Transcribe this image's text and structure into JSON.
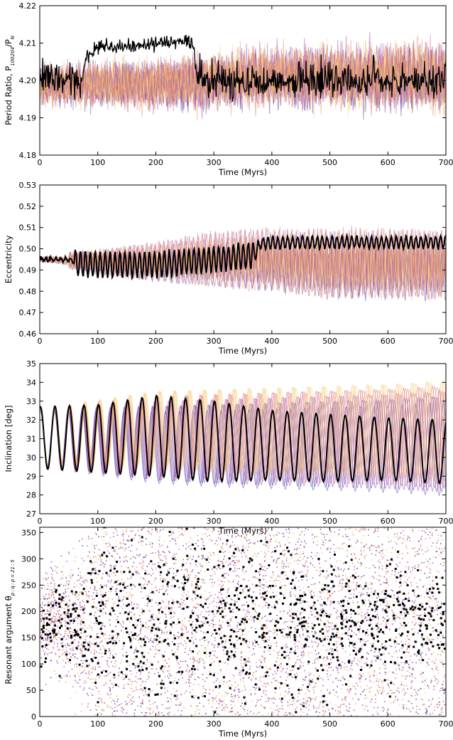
{
  "chart_data": [
    {
      "type": "line",
      "xlabel": "Time (Myrs)",
      "ylabel": "Period Ratio, P",
      "ylabel_sub": "100204",
      "ylabel_tail": "/P",
      "ylabel_sub2": "N",
      "xlim": [
        0,
        700
      ],
      "ylim": [
        4.18,
        4.22
      ],
      "xticks": [
        0,
        100,
        200,
        300,
        400,
        500,
        600,
        700
      ],
      "yticks": [
        "4.18",
        "4.19",
        "4.20",
        "4.21",
        "4.22"
      ],
      "ytick_values": [
        4.18,
        4.19,
        4.2,
        4.21,
        4.22
      ],
      "series": [
        {
          "role": "nominal",
          "color": "#000000",
          "x": [
            0,
            60,
            70,
            80,
            100,
            150,
            200,
            250,
            265,
            270,
            300,
            350,
            400,
            450,
            500,
            550,
            600,
            650,
            700
          ],
          "y": [
            4.2,
            4.2,
            4.199,
            4.206,
            4.209,
            4.209,
            4.21,
            4.211,
            4.21,
            4.2,
            4.2,
            4.2,
            4.2,
            4.2,
            4.2,
            4.2,
            4.2,
            4.2,
            4.2
          ]
        },
        {
          "role": "clones",
          "colormap": [
            "#3b2b9e",
            "#7b3fa8",
            "#b14d9a",
            "#d96b7c",
            "#f3a35b",
            "#fbd865"
          ],
          "x": [
            0,
            100,
            200,
            300,
            400,
            500,
            600,
            700
          ],
          "y": [
            4.199,
            4.199,
            4.199,
            4.2,
            4.201,
            4.201,
            4.201,
            4.201
          ]
        }
      ]
    },
    {
      "type": "line",
      "xlabel": "Time (Myrs)",
      "ylabel": "Eccentricity",
      "xlim": [
        0,
        700
      ],
      "ylim": [
        0.46,
        0.53
      ],
      "xticks": [
        0,
        100,
        200,
        300,
        400,
        500,
        600,
        700
      ],
      "yticks": [
        "0.46",
        "0.47",
        "0.48",
        "0.49",
        "0.50",
        "0.51",
        "0.52",
        "0.53"
      ],
      "ytick_values": [
        0.46,
        0.47,
        0.48,
        0.49,
        0.5,
        0.51,
        0.52,
        0.53
      ],
      "series": [
        {
          "role": "nominal",
          "color": "#000000",
          "x": [
            0,
            50,
            65,
            100,
            200,
            300,
            370,
            380,
            450,
            500,
            600,
            700
          ],
          "y": [
            0.495,
            0.495,
            0.493,
            0.4925,
            0.4925,
            0.495,
            0.497,
            0.5025,
            0.503,
            0.503,
            0.503,
            0.503
          ]
        },
        {
          "role": "clones",
          "x": [
            0,
            100,
            200,
            300,
            400,
            500,
            600,
            700
          ],
          "y": [
            0.495,
            0.494,
            0.494,
            0.495,
            0.495,
            0.493,
            0.493,
            0.493
          ]
        }
      ]
    },
    {
      "type": "line",
      "xlabel": "Time (Myrs)",
      "ylabel": "Inclination [deg]",
      "xlim": [
        0,
        700
      ],
      "ylim": [
        27,
        35
      ],
      "xticks": [
        0,
        100,
        200,
        300,
        400,
        500,
        600,
        700
      ],
      "yticks": [
        "27",
        "28",
        "29",
        "30",
        "31",
        "32",
        "33",
        "34",
        "35"
      ],
      "ytick_values": [
        27,
        28,
        29,
        30,
        31,
        32,
        33,
        34,
        35
      ],
      "series": [
        {
          "role": "nominal",
          "color": "#000000",
          "oscillation_period_myr": 25,
          "x": [
            0,
            100,
            200,
            300,
            400,
            500,
            600,
            700
          ],
          "y_min": [
            29.4,
            29.2,
            29.0,
            28.7,
            28.8,
            28.7,
            28.8,
            28.6
          ],
          "y_max": [
            32.7,
            32.8,
            33.3,
            33.0,
            32.5,
            32.3,
            32.1,
            32.0
          ]
        },
        {
          "role": "clones",
          "x": [
            0,
            100,
            200,
            300,
            400,
            500,
            600,
            700
          ],
          "y_min": [
            29.4,
            29.2,
            29.0,
            28.8,
            28.7,
            28.6,
            28.5,
            28.3
          ],
          "y_max": [
            32.7,
            33.0,
            33.3,
            33.4,
            33.5,
            33.6,
            33.7,
            33.9
          ]
        }
      ]
    },
    {
      "type": "scatter",
      "xlabel": "Time (Myrs)",
      "ylabel": "Resonant argument θ",
      "ylabel_sub": "p : q : p = 21 : 5",
      "xlim": [
        0,
        700
      ],
      "ylim": [
        0,
        360
      ],
      "xticks": [
        0,
        100,
        200,
        300,
        400,
        500,
        600,
        700
      ],
      "yticks": [
        "0",
        "50",
        "100",
        "150",
        "200",
        "250",
        "300",
        "350"
      ],
      "ytick_values": [
        0,
        50,
        100,
        150,
        200,
        250,
        300,
        350
      ],
      "series": [
        {
          "role": "nominal",
          "color": "#000000",
          "x": [
            0,
            70,
            100,
            200,
            300,
            400,
            500,
            600,
            700
          ],
          "y_center": [
            180,
            180,
            180,
            180,
            180,
            180,
            180,
            180,
            180
          ],
          "y_spread": [
            80,
            110,
            180,
            180,
            180,
            160,
            130,
            120,
            110
          ]
        },
        {
          "role": "clones",
          "x": [
            0,
            100,
            200,
            300,
            400,
            500,
            600,
            700
          ],
          "y_center": [
            180,
            180,
            180,
            180,
            180,
            180,
            180,
            180
          ],
          "y_spread": [
            90,
            180,
            180,
            180,
            180,
            180,
            180,
            180
          ]
        }
      ]
    }
  ]
}
